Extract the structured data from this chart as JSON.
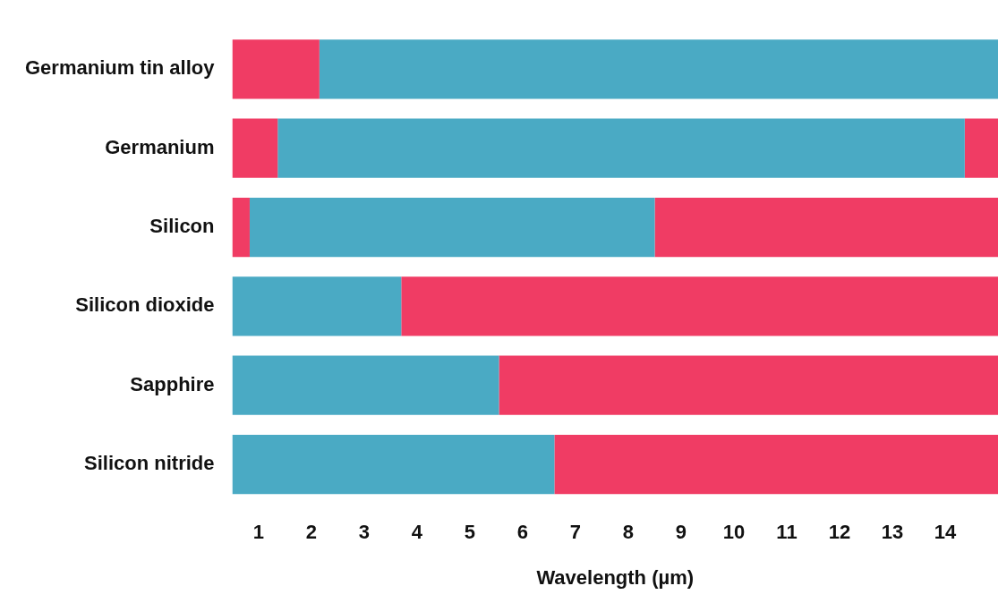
{
  "chart_data": {
    "type": "bar",
    "orientation": "horizontal",
    "xlabel": "Wavelength (µm)",
    "categories": [
      "Germanium tin alloy",
      "Germanium",
      "Silicon",
      "Silicon dioxide",
      "Sapphire",
      "Silicon nitride"
    ],
    "series": [
      {
        "base": [
          0.5,
          0.5,
          0.5,
          0.5,
          0.5,
          0.5
        ],
        "values": [
          1.65,
          0.86,
          0.33,
          3.2,
          5.05,
          6.1
        ],
        "colors": [
          "#f03c64",
          "#f03c64",
          "#f03c64",
          "#4aaac4",
          "#4aaac4",
          "#4aaac4"
        ]
      },
      {
        "base": [
          2.15,
          1.36,
          0.83,
          3.7,
          5.55,
          6.6
        ],
        "values": [
          12.85,
          13.01,
          7.67,
          11.3,
          9.45,
          8.4
        ],
        "colors": [
          "#4aaac4",
          "#4aaac4",
          "#4aaac4",
          "#f03c64",
          "#f03c64",
          "#f03c64"
        ]
      },
      {
        "base": [
          null,
          14.37,
          8.5,
          null,
          null,
          null
        ],
        "values": [
          null,
          0.63,
          6.5,
          null,
          null,
          null
        ],
        "colors": [
          "#f03c64",
          "#f03c64",
          "#f03c64",
          "#f03c64",
          "#f03c64",
          "#f03c64"
        ]
      }
    ],
    "xlim": [
      0.5,
      15
    ],
    "xticks": [
      1,
      2,
      3,
      4,
      5,
      6,
      7,
      8,
      9,
      10,
      11,
      12,
      13,
      14
    ],
    "grid": false,
    "legend": false
  }
}
